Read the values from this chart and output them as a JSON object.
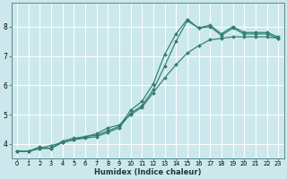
{
  "xlabel": "Humidex (Indice chaleur)",
  "background_color": "#cce8ec",
  "grid_color": "#ffffff",
  "line_color": "#2e7d6e",
  "xlim": [
    -0.5,
    23.5
  ],
  "ylim": [
    3.5,
    8.8
  ],
  "xticks": [
    0,
    1,
    2,
    3,
    4,
    5,
    6,
    7,
    8,
    9,
    10,
    11,
    12,
    13,
    14,
    15,
    16,
    17,
    18,
    19,
    20,
    21,
    22,
    23
  ],
  "yticks": [
    4,
    5,
    6,
    7,
    8
  ],
  "line1_x": [
    0,
    1,
    2,
    3,
    4,
    5,
    6,
    7,
    8,
    9,
    10,
    11,
    12,
    13,
    14,
    15,
    16,
    17,
    18,
    19,
    20,
    21,
    22,
    23
  ],
  "line1_y": [
    3.75,
    3.75,
    3.9,
    3.85,
    4.1,
    4.2,
    4.25,
    4.3,
    4.45,
    4.6,
    5.15,
    5.45,
    6.05,
    7.05,
    7.75,
    8.25,
    7.95,
    8.05,
    7.75,
    8.0,
    7.8,
    7.8,
    7.8,
    7.65
  ],
  "line2_x": [
    0,
    1,
    2,
    3,
    4,
    5,
    6,
    7,
    8,
    9,
    10,
    11,
    12,
    13,
    14,
    15,
    16,
    17,
    18,
    19,
    20,
    21,
    22,
    23
  ],
  "line2_y": [
    3.75,
    3.75,
    3.85,
    3.85,
    4.05,
    4.15,
    4.2,
    4.25,
    4.4,
    4.55,
    5.05,
    5.3,
    5.85,
    6.65,
    7.5,
    8.2,
    7.95,
    8.0,
    7.7,
    7.95,
    7.75,
    7.75,
    7.75,
    7.6
  ],
  "line3_x": [
    0,
    1,
    2,
    3,
    4,
    5,
    6,
    7,
    8,
    9,
    10,
    11,
    12,
    13,
    14,
    15,
    16,
    17,
    18,
    19,
    20,
    21,
    22,
    23
  ],
  "line3_y": [
    3.75,
    3.75,
    3.85,
    3.95,
    4.05,
    4.15,
    4.25,
    4.35,
    4.55,
    4.65,
    5.0,
    5.25,
    5.75,
    6.25,
    6.7,
    7.1,
    7.35,
    7.55,
    7.6,
    7.65,
    7.65,
    7.65,
    7.65,
    7.6
  ]
}
